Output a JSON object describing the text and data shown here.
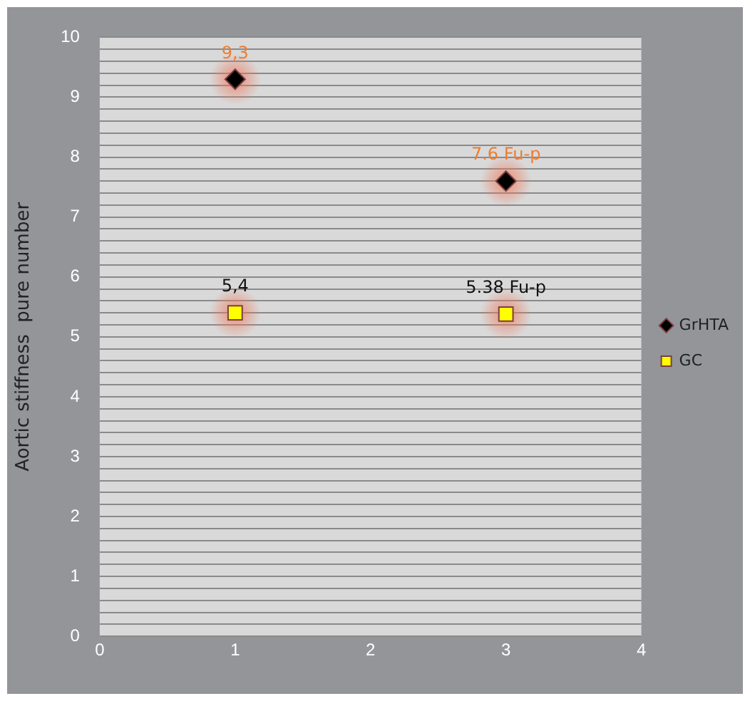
{
  "chart_data": {
    "type": "scatter",
    "ylabel": "Aortic stiffness  pure number",
    "x": [
      1,
      3
    ],
    "series": [
      {
        "name": "GrHTA",
        "color": "#000000",
        "marker": "diamond",
        "values": [
          9.3,
          7.6
        ],
        "value_labels": [
          "9,3",
          "7.6 Fu-p"
        ]
      },
      {
        "name": "GC",
        "color": "#ffff00",
        "marker": "square",
        "values": [
          5.4,
          5.38
        ],
        "value_labels": [
          "5,4",
          "5.38 Fu-p"
        ]
      }
    ],
    "xlim": [
      0,
      4
    ],
    "xticks": [
      0,
      1,
      2,
      3,
      4
    ],
    "ylim": [
      0,
      10
    ],
    "yticks": [
      0,
      {
        "value": 0.2,
        "label": null
      },
      {
        "value": 0.4,
        "label": null
      },
      {
        "value": 0.6,
        "label": null
      },
      {
        "value": 0.8,
        "label": null
      },
      1,
      {
        "value": 1.2,
        "label": null
      },
      {
        "value": 1.4,
        "label": null
      },
      {
        "value": 1.6,
        "label": null
      },
      {
        "value": 1.8,
        "label": null
      },
      2,
      {
        "value": 2.2,
        "label": null
      },
      {
        "value": 2.4,
        "label": null
      },
      {
        "value": 2.6,
        "label": null
      },
      {
        "value": 2.8,
        "label": null
      },
      3,
      {
        "value": 3.2,
        "label": null
      },
      {
        "value": 3.4,
        "label": null
      },
      {
        "value": 3.6,
        "label": null
      },
      {
        "value": 3.8,
        "label": null
      },
      4,
      {
        "value": 4.2,
        "label": null
      },
      {
        "value": 4.4,
        "label": null
      },
      {
        "value": 4.6,
        "label": null
      },
      {
        "value": 4.8,
        "label": null
      },
      5,
      {
        "value": 5.2,
        "label": null
      },
      {
        "value": 5.4,
        "label": null
      },
      {
        "value": 5.6,
        "label": null
      },
      {
        "value": 5.8,
        "label": null
      },
      6,
      {
        "value": 6.2,
        "label": null
      },
      {
        "value": 6.4,
        "label": null
      },
      {
        "value": 6.6,
        "label": null
      },
      {
        "value": 6.8,
        "label": null
      },
      7,
      {
        "value": 7.2,
        "label": null
      },
      {
        "value": 7.4,
        "label": null
      },
      {
        "value": 7.6,
        "label": null
      },
      {
        "value": 7.8,
        "label": null
      },
      8,
      {
        "value": 8.2,
        "label": null
      },
      {
        "value": 8.4,
        "label": null
      },
      {
        "value": 8.6,
        "label": null
      },
      {
        "value": 8.8,
        "label": null
      },
      9,
      {
        "value": 9.2,
        "label": null
      },
      {
        "value": 9.4,
        "label": null
      },
      {
        "value": 9.6,
        "label": null
      },
      {
        "value": 9.8,
        "label": null
      },
      10
    ],
    "grid": "y",
    "legend": "right"
  }
}
